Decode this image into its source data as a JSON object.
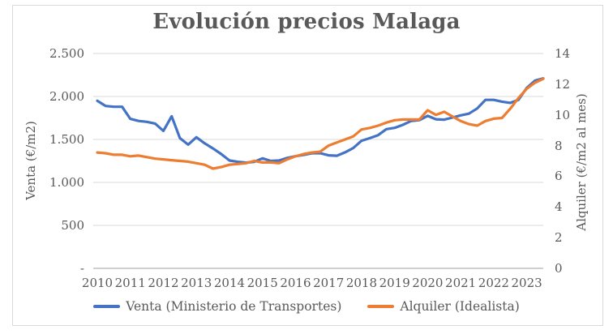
{
  "chart_data": {
    "type": "line",
    "title": "Evolución precios Malaga",
    "grid": "horizontal",
    "legend_position": "bottom",
    "x_tick_labels": [
      "2010",
      "2011",
      "2012",
      "2013",
      "2014",
      "2015",
      "2016",
      "2017",
      "2018",
      "2019",
      "2020",
      "2021",
      "2022",
      "2023"
    ],
    "x_frequency": "quarterly points, yearly labels",
    "y_left": {
      "title": "Venta (€/m2)",
      "min": 0,
      "max": 2500,
      "tick_labels_top_down": [
        "2.500",
        "2.000",
        "1.500",
        "1.000",
        "500",
        "-"
      ]
    },
    "y_right": {
      "title": "Alquiler (€/m2 al mes)",
      "min": 0,
      "max": 14,
      "tick_labels_top_down": [
        "14",
        "12",
        "10",
        "8",
        "6",
        "4",
        "2",
        "0"
      ]
    },
    "series": [
      {
        "name": "Venta (Ministerio de Transportes)",
        "axis": "left",
        "color": "#4472C4",
        "start": "2010 Q1",
        "values": [
          1950,
          1890,
          1880,
          1880,
          1740,
          1715,
          1705,
          1685,
          1600,
          1770,
          1515,
          1440,
          1525,
          1455,
          1395,
          1330,
          1255,
          1240,
          1230,
          1240,
          1280,
          1250,
          1255,
          1285,
          1305,
          1320,
          1340,
          1340,
          1315,
          1310,
          1350,
          1400,
          1485,
          1515,
          1550,
          1620,
          1635,
          1670,
          1715,
          1725,
          1775,
          1735,
          1730,
          1755,
          1780,
          1800,
          1860,
          1960,
          1960,
          1940,
          1925,
          1960,
          2100,
          2185,
          2210
        ]
      },
      {
        "name": "Alquiler (Idealista)",
        "axis": "right",
        "color": "#ED7D31",
        "start": "2010 Q1",
        "values": [
          7.55,
          7.5,
          7.4,
          7.4,
          7.3,
          7.35,
          7.25,
          7.15,
          7.1,
          7.05,
          7.0,
          6.95,
          6.85,
          6.75,
          6.5,
          6.6,
          6.75,
          6.8,
          6.85,
          7.0,
          6.9,
          6.9,
          6.85,
          7.1,
          7.3,
          7.45,
          7.55,
          7.6,
          8.0,
          8.2,
          8.4,
          8.6,
          9.05,
          9.15,
          9.3,
          9.5,
          9.65,
          9.7,
          9.7,
          9.7,
          10.3,
          10.0,
          10.2,
          9.9,
          9.6,
          9.4,
          9.3,
          9.6,
          9.75,
          9.8,
          10.4,
          11.1,
          11.7,
          12.1,
          12.35
        ]
      }
    ],
    "colors": {
      "text": "#595959",
      "gridline": "#D9D9D9",
      "axis_line": "#BFBFBF",
      "frame_border": "#D9D9D9"
    }
  }
}
